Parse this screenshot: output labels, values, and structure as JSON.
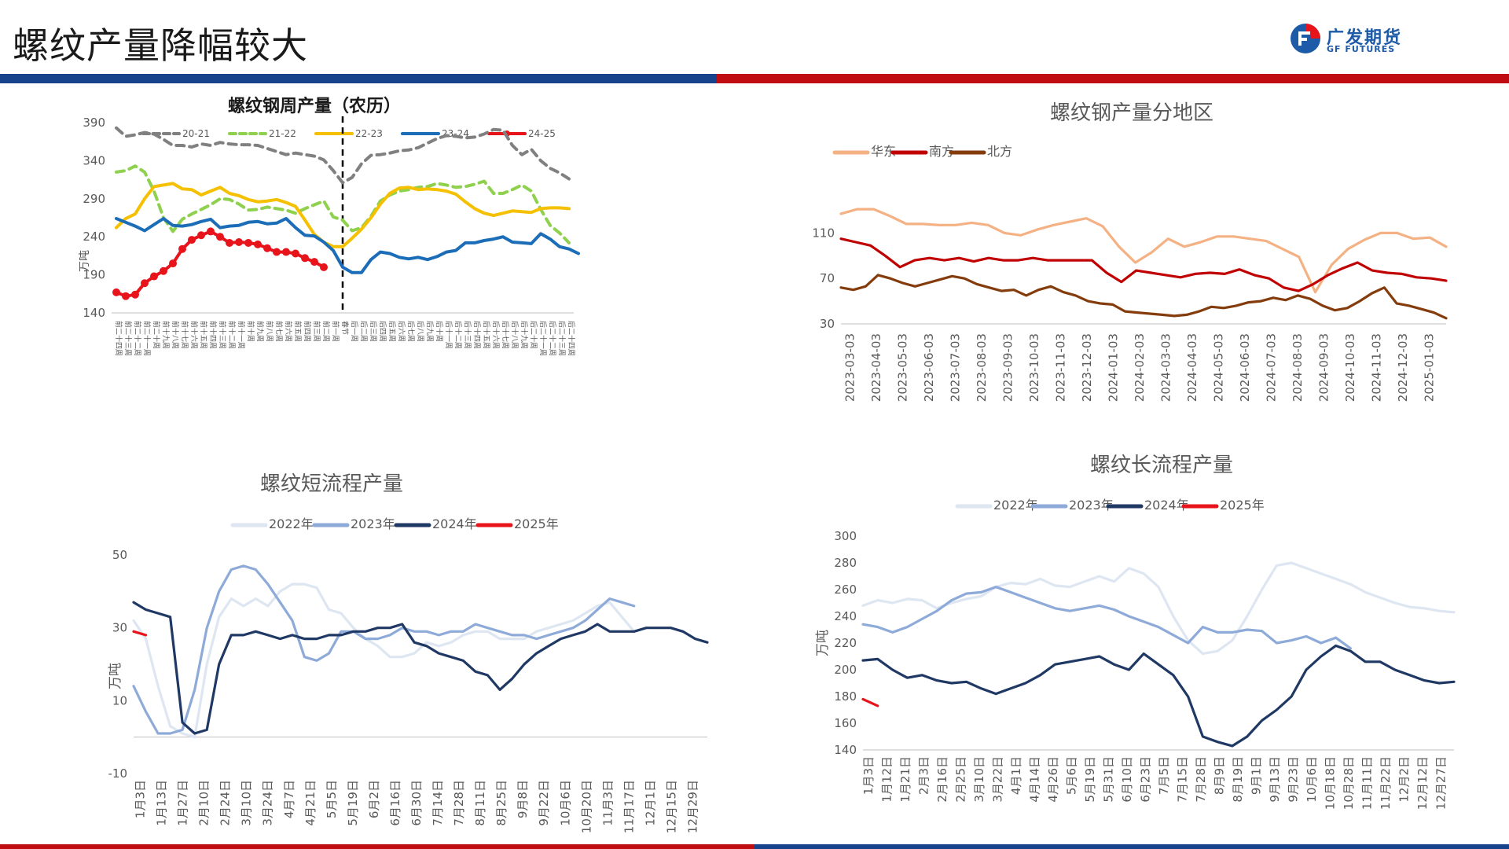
{
  "page": {
    "title": "螺纹产量降幅较大",
    "logo": {
      "cn": "广发期货",
      "en": "GF FUTURES"
    },
    "colors": {
      "band_blue": "#17428c",
      "band_red": "#c00d12",
      "logo_blue": "#1d5aa8"
    }
  },
  "chart_data": [
    {
      "id": "weekly",
      "type": "line",
      "title": "螺纹钢周产量（农历）",
      "ylabel": "万吨",
      "ylim": [
        140,
        390
      ],
      "yticks": [
        140,
        190,
        240,
        290,
        340,
        390
      ],
      "legend_position": "top",
      "x_labels": [
        "前二十四周",
        "前二十三周",
        "前二十二周",
        "前二十一周",
        "前二十周",
        "前十九周",
        "前十八周",
        "前十七周",
        "前十六周",
        "前十五周",
        "前十四周",
        "前十三周",
        "前十二周",
        "前十一周",
        "前十周",
        "前九周",
        "前八周",
        "前七周",
        "前六周",
        "前五周",
        "前四周",
        "前三周",
        "前二周",
        "前一周",
        "春节",
        "后一周",
        "后二周",
        "后三周",
        "后四周",
        "后五周",
        "后六周",
        "后七周",
        "后八周",
        "后九周",
        "后十周",
        "后十一周",
        "后十二周",
        "后十三周",
        "后十四周",
        "后十五周",
        "后十六周",
        "后十七周",
        "后十八周",
        "后十九周",
        "后二十周",
        "后二十一周",
        "后二十二周",
        "后二十三周",
        "后二十四周"
      ],
      "spring_festival_index": 24,
      "series": [
        {
          "name": "20-21",
          "color": "#808080",
          "dash": "dashed",
          "values": [
            383,
            372,
            374,
            377,
            375,
            368,
            360,
            360,
            358,
            362,
            360,
            364,
            362,
            361,
            361,
            360,
            356,
            352,
            348,
            350,
            348,
            346,
            341,
            327,
            311,
            318,
            336,
            347,
            348,
            350,
            353,
            354,
            357,
            363,
            369,
            373,
            372,
            370,
            371,
            375,
            381,
            380,
            360,
            348,
            355,
            340,
            330,
            324,
            316
          ]
        },
        {
          "name": "21-22",
          "color": "#8fd14f",
          "dash": "dashed",
          "values": [
            325,
            327,
            333,
            325,
            300,
            265,
            247,
            263,
            270,
            276,
            282,
            290,
            289,
            283,
            275,
            276,
            279,
            277,
            275,
            271,
            277,
            282,
            287,
            266,
            262,
            248,
            252,
            267,
            287,
            295,
            300,
            302,
            305,
            306,
            310,
            308,
            305,
            306,
            309,
            313,
            297,
            297,
            302,
            308,
            300,
            276,
            255,
            245,
            232
          ]
        },
        {
          "name": "22-23",
          "color": "#f5c000",
          "dash": "solid",
          "values": [
            252,
            264,
            270,
            290,
            306,
            308,
            310,
            303,
            302,
            295,
            300,
            305,
            297,
            294,
            289,
            286,
            287,
            289,
            285,
            280,
            262,
            243,
            233,
            227,
            227,
            238,
            250,
            265,
            283,
            297,
            304,
            305,
            302,
            303,
            302,
            300,
            296,
            286,
            277,
            271,
            268,
            271,
            274,
            273,
            272,
            277,
            278,
            278,
            277
          ]
        },
        {
          "name": "23-24",
          "color": "#1c6db8",
          "dash": "solid",
          "values": [
            264,
            259,
            254,
            248,
            256,
            264,
            255,
            254,
            256,
            260,
            263,
            252,
            254,
            255,
            259,
            260,
            257,
            258,
            264,
            252,
            242,
            241,
            233,
            222,
            200,
            193,
            193,
            210,
            220,
            218,
            213,
            211,
            213,
            210,
            214,
            220,
            222,
            232,
            232,
            235,
            237,
            240,
            233,
            232,
            231,
            244,
            237,
            227,
            224,
            218
          ]
        },
        {
          "name": "24-25",
          "color": "#e8141b",
          "dash": "markers",
          "values": [
            167,
            162,
            164,
            179,
            188,
            195,
            205,
            224,
            236,
            242,
            247,
            240,
            232,
            233,
            232,
            230,
            225,
            220,
            220,
            218,
            212,
            207,
            200
          ]
        }
      ]
    },
    {
      "id": "region",
      "type": "line",
      "title": "螺纹钢产量分地区",
      "ylim": [
        30,
        120
      ],
      "yticks": [
        30,
        70,
        110
      ],
      "legend_position": "top",
      "x_labels": [
        "2023-03-03",
        "2023-04-03",
        "2023-05-03",
        "2023-06-03",
        "2023-07-03",
        "2023-08-03",
        "2023-09-03",
        "2023-10-03",
        "2023-11-03",
        "2023-12-03",
        "2024-01-03",
        "2024-02-03",
        "2024-03-03",
        "2024-04-03",
        "2024-05-03",
        "2024-06-03",
        "2024-07-03",
        "2024-08-03",
        "2024-09-03",
        "2024-10-03",
        "2024-11-03",
        "2024-12-03",
        "2025-01-03"
      ],
      "series": [
        {
          "name": "华东",
          "color": "#f4b183",
          "values": [
            127,
            131,
            131,
            125,
            118,
            118,
            117,
            117,
            119,
            117,
            110,
            108,
            113,
            117,
            120,
            123,
            116,
            98,
            84,
            93,
            105,
            98,
            102,
            107,
            107,
            105,
            103,
            96,
            89,
            58,
            82,
            96,
            104,
            110,
            110,
            105,
            106,
            98
          ]
        },
        {
          "name": "南方",
          "color": "#c00000",
          "values": [
            105,
            102,
            99,
            90,
            80,
            86,
            88,
            86,
            88,
            85,
            88,
            86,
            86,
            88,
            86,
            86,
            86,
            86,
            75,
            67,
            77,
            75,
            73,
            71,
            74,
            75,
            74,
            78,
            73,
            70,
            62,
            59,
            65,
            73,
            79,
            84,
            77,
            75,
            74,
            71,
            70,
            68
          ]
        },
        {
          "name": "北方",
          "color": "#843c0c",
          "values": [
            62,
            60,
            63,
            73,
            70,
            66,
            63,
            66,
            69,
            72,
            70,
            65,
            62,
            59,
            60,
            55,
            60,
            63,
            58,
            55,
            50,
            48,
            47,
            41,
            40,
            39,
            38,
            37,
            38,
            41,
            45,
            44,
            46,
            49,
            50,
            53,
            51,
            55,
            52,
            46,
            42,
            44,
            50,
            57,
            62,
            48,
            46,
            43,
            40,
            35
          ]
        }
      ]
    },
    {
      "id": "short",
      "type": "line",
      "title": "螺纹短流程产量",
      "ylabel": "万吨",
      "ylim": [
        -10,
        50
      ],
      "yticks": [
        -10,
        10,
        30,
        50
      ],
      "legend_position": "top",
      "x_labels": [
        "1月3日",
        "1月13日",
        "1月27日",
        "2月10日",
        "2月24日",
        "3月10日",
        "3月24日",
        "4月7日",
        "4月21日",
        "5月5日",
        "5月19日",
        "6月2日",
        "6月16日",
        "6月30日",
        "7月14日",
        "7月28日",
        "8月11日",
        "8月25日",
        "9月8日",
        "9月22日",
        "10月6日",
        "10月20日",
        "11月3日",
        "11月17日",
        "12月1日",
        "12月15日",
        "12月29日"
      ],
      "series": [
        {
          "name": "2022年",
          "color": "#dde6f1",
          "values": [
            32,
            27,
            14,
            3,
            1,
            0,
            20,
            33,
            38,
            36,
            38,
            36,
            40,
            42,
            42,
            41,
            35,
            34,
            30,
            27,
            25,
            22,
            22,
            23,
            26,
            25,
            26,
            28,
            29,
            29,
            27,
            27,
            27,
            29,
            30,
            31,
            32,
            34,
            36,
            37,
            33,
            29
          ]
        },
        {
          "name": "2023年",
          "color": "#8eaad8",
          "values": [
            14,
            7,
            1,
            1,
            2,
            13,
            30,
            40,
            46,
            47,
            46,
            42,
            37,
            32,
            22,
            21,
            23,
            29,
            29,
            27,
            27,
            28,
            30,
            29,
            29,
            28,
            29,
            29,
            31,
            30,
            29,
            28,
            28,
            27,
            28,
            29,
            30,
            32,
            35,
            38,
            37,
            36
          ]
        },
        {
          "name": "2024年",
          "color": "#1f3864",
          "values": [
            37,
            35,
            34,
            33,
            4,
            1,
            2,
            20,
            28,
            28,
            29,
            28,
            27,
            28,
            27,
            27,
            28,
            28,
            29,
            29,
            30,
            30,
            31,
            26,
            25,
            23,
            22,
            21,
            18,
            17,
            13,
            16,
            20,
            23,
            25,
            27,
            28,
            29,
            31,
            29,
            29,
            29,
            30,
            30,
            30,
            29,
            27,
            26
          ]
        },
        {
          "name": "2025年",
          "color": "#e8141b",
          "values": [
            29,
            28
          ]
        }
      ]
    },
    {
      "id": "long",
      "type": "line",
      "title": "螺纹长流程产量",
      "ylabel": "万吨",
      "ylim": [
        140,
        300
      ],
      "yticks": [
        140,
        160,
        180,
        200,
        220,
        240,
        260,
        280,
        300
      ],
      "legend_position": "top",
      "x_labels": [
        "1月3日",
        "1月12日",
        "1月21日",
        "2月3日",
        "2月16日",
        "2月25日",
        "3月10日",
        "3月22日",
        "4月1日",
        "4月14日",
        "4月26日",
        "5月6日",
        "5月19日",
        "5月31日",
        "6月10日",
        "6月23日",
        "7月5日",
        "7月15日",
        "7月28日",
        "8月9日",
        "8月19日",
        "9月1日",
        "9月13日",
        "9月23日",
        "10月6日",
        "10月18日",
        "10月28日",
        "11月11日",
        "11月22日",
        "12月2日",
        "12月12日",
        "12月27日"
      ],
      "series": [
        {
          "name": "2022年",
          "color": "#dde6f1",
          "values": [
            248,
            252,
            250,
            253,
            252,
            246,
            250,
            253,
            255,
            262,
            265,
            264,
            268,
            263,
            262,
            266,
            270,
            266,
            276,
            272,
            262,
            240,
            222,
            212,
            214,
            222,
            240,
            260,
            278,
            280,
            276,
            272,
            268,
            264,
            258,
            254,
            250,
            247,
            246,
            244,
            243
          ]
        },
        {
          "name": "2023年",
          "color": "#8eaad8",
          "values": [
            234,
            232,
            228,
            232,
            238,
            244,
            252,
            257,
            258,
            262,
            258,
            254,
            250,
            246,
            244,
            246,
            248,
            245,
            240,
            236,
            232,
            226,
            220,
            232,
            228,
            228,
            230,
            229,
            220,
            222,
            225,
            220,
            224,
            216
          ]
        },
        {
          "name": "2024年",
          "color": "#1f3864",
          "values": [
            207,
            208,
            200,
            194,
            196,
            192,
            190,
            191,
            186,
            182,
            186,
            190,
            196,
            204,
            206,
            208,
            210,
            204,
            200,
            212,
            204,
            196,
            180,
            150,
            146,
            143,
            150,
            162,
            170,
            180,
            200,
            210,
            218,
            214,
            206,
            206,
            200,
            196,
            192,
            190,
            191
          ]
        },
        {
          "name": "2025年",
          "color": "#e8141b",
          "values": [
            178,
            173
          ]
        }
      ]
    }
  ]
}
